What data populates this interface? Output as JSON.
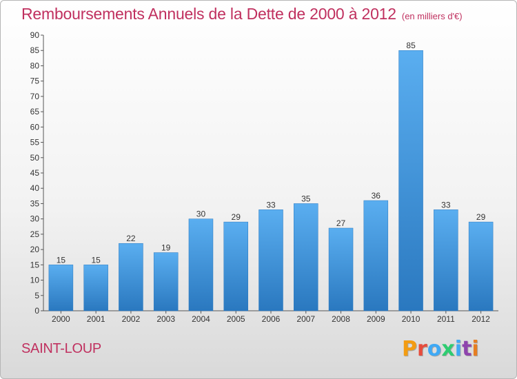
{
  "header": {
    "title": "Remboursements Annuels de la Dette de 2000 à 2012",
    "unit": "(en milliers d'€)"
  },
  "footer": {
    "commune": "SAINT-LOUP",
    "brand": "Proxiti"
  },
  "colors": {
    "title": "#c0305f",
    "bar_light": "#5aaef0",
    "bar_dark": "#2a78bf",
    "brand_letters": [
      "#f39c12",
      "#e74c3c",
      "#3fa9f5",
      "#2ecc71",
      "#3fa9f5",
      "#8e44ad",
      "#e67e22"
    ]
  },
  "chart_data": {
    "type": "bar",
    "title": "Remboursements Annuels de la Dette de 2000 à 2012",
    "ylabel": "en milliers d'€",
    "xlabel": "",
    "categories": [
      "2000",
      "2001",
      "2002",
      "2003",
      "2004",
      "2005",
      "2006",
      "2007",
      "2008",
      "2009",
      "2010",
      "2011",
      "2012"
    ],
    "values": [
      15,
      15,
      22,
      19,
      30,
      29,
      33,
      35,
      27,
      36,
      85,
      33,
      29
    ],
    "ylim": [
      0,
      90
    ],
    "yticks": [
      0,
      5,
      10,
      15,
      20,
      25,
      30,
      35,
      40,
      45,
      50,
      55,
      60,
      65,
      70,
      75,
      80,
      85,
      90
    ],
    "grid": false,
    "legend": "none"
  }
}
